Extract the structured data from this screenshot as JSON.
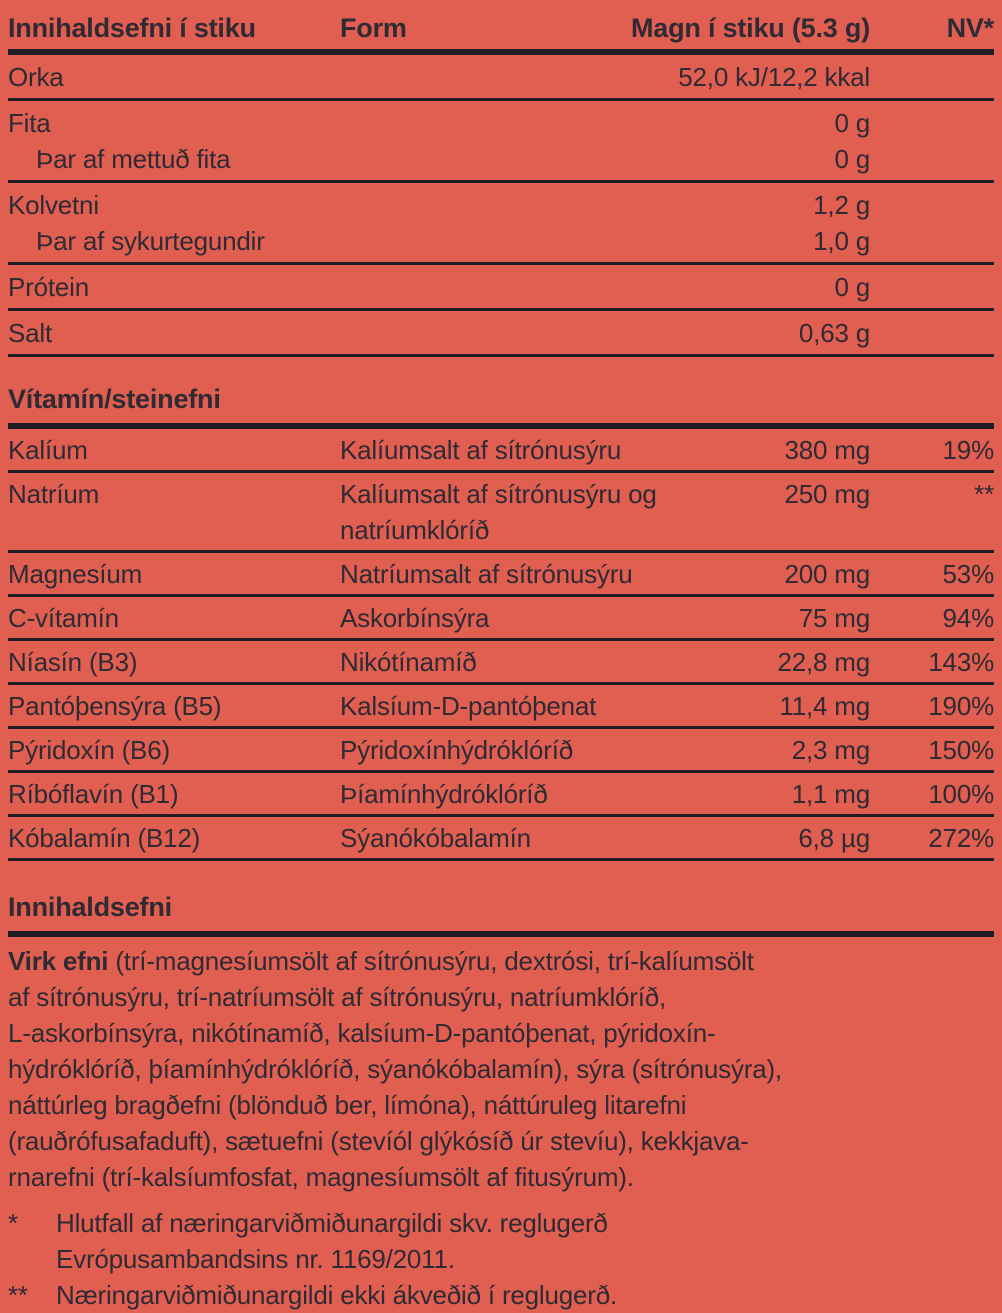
{
  "colors": {
    "background": "#e05f51",
    "text": "#2f2a33",
    "rule": "#211d24"
  },
  "header": {
    "ingredient_col": "Innihaldsefni í stiku",
    "form_col": "Form",
    "amount_col": "Magn í stiku (5.3 g)",
    "nv_col": "NV*"
  },
  "macros": {
    "groups": [
      {
        "rows": [
          {
            "name": "Orka",
            "amount": "52,0 kJ/12,2 kkal",
            "indent": false
          }
        ]
      },
      {
        "rows": [
          {
            "name": "Fita",
            "amount": "0 g",
            "indent": false
          },
          {
            "name": "Þar af mettuð fita",
            "amount": "0 g",
            "indent": true
          }
        ]
      },
      {
        "rows": [
          {
            "name": "Kolvetni",
            "amount": "1,2 g",
            "indent": false
          },
          {
            "name": "Þar af sykurtegundir",
            "amount": "1,0 g",
            "indent": true
          }
        ]
      },
      {
        "rows": [
          {
            "name": "Prótein",
            "amount": "0 g",
            "indent": false
          }
        ]
      },
      {
        "rows": [
          {
            "name": "Salt",
            "amount": "0,63 g",
            "indent": false
          }
        ]
      }
    ]
  },
  "vitamins": {
    "heading": "Vítamín/steinefni",
    "rows": [
      {
        "name": "Kalíum",
        "form": "Kalíumsalt af sítrónusýru",
        "amount": "380 mg",
        "nv": "19%"
      },
      {
        "name": "Natríum",
        "form": "Kalíumsalt af sítrónusýru og natríumklóríð",
        "amount": "250 mg",
        "nv": "**"
      },
      {
        "name": "Magnesíum",
        "form": "Natríumsalt af sítrónusýru",
        "amount": "200 mg",
        "nv": "53%"
      },
      {
        "name": "C-vítamín",
        "form": "Askorbínsýra",
        "amount": "75 mg",
        "nv": "94%"
      },
      {
        "name": "Níasín (B3)",
        "form": "Nikótínamíð",
        "amount": "22,8 mg",
        "nv": "143%"
      },
      {
        "name": "Pantóþensýra (B5)",
        "form": "Kalsíum-D-pantóþenat",
        "amount": "11,4 mg",
        "nv": "190%"
      },
      {
        "name": "Pýridoxín (B6)",
        "form": "Pýridoxínhýdróklóríð",
        "amount": "2,3 mg",
        "nv": "150%"
      },
      {
        "name": "Ríbóflavín (B1)",
        "form": "Þíamínhýdróklóríð",
        "amount": "1,1 mg",
        "nv": "100%"
      },
      {
        "name": "Kóbalamín (B12)",
        "form": "Sýanókóbalamín",
        "amount": "6,8 µg",
        "nv": "272%"
      }
    ]
  },
  "ingredients": {
    "heading": "Innihaldsefni",
    "lead": "Virk efni",
    "lines": [
      " (trí-magnesíumsölt af sítrónusýru, dextrósi, trí-kalíumsölt",
      "af sítrónusýru, trí-natríumsölt af sítrónusýru, natríumklóríð,",
      "L-askorbínsýra, nikótínamíð, kalsíum-D-pantóþenat, pýridoxín-",
      "hýdróklóríð, þíamínhýdróklóríð, sýanókóbalamín), sýra (sítrónusýra),",
      "náttúrleg bragðefni (blönduð ber, límóna), náttúruleg litarefni",
      "(rauðrófusafaduft), sætuefni (stevíól glýkósíð úr stevíu), kekkjava-",
      "rnarefni (trí-kalsíumfosfat, magnesíumsölt af fitusýrum)."
    ]
  },
  "footnotes": [
    {
      "marker": "*",
      "text": "Hlutfall af næringarviðmiðunargildi skv. reglugerð Evrópusambandsins nr. 1169/2011."
    },
    {
      "marker": "**",
      "text": "Næringarviðmiðunargildi ekki ákveðið í reglugerð."
    }
  ]
}
